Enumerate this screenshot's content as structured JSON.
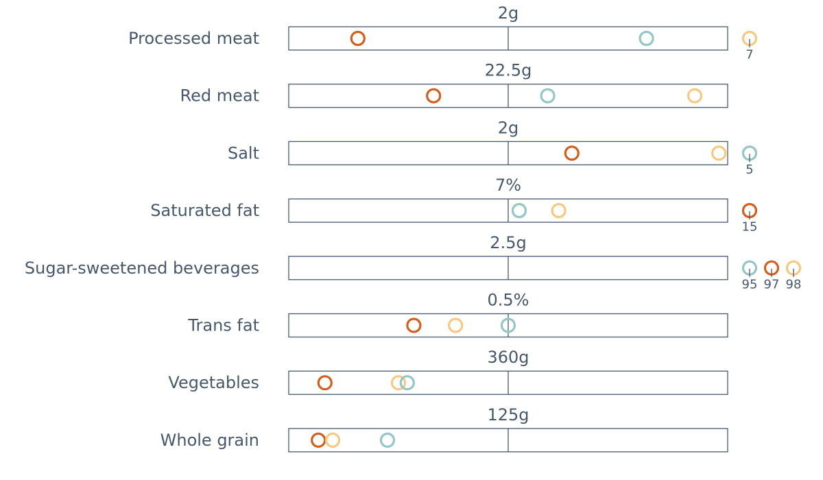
{
  "chart_data": {
    "type": "scatter",
    "colors": {
      "dark-orange": "#d35f1a",
      "light-orange": "#f7c97e",
      "teal": "#93c6c4"
    },
    "rows": [
      {
        "category": "Processed meat",
        "reference": "2g",
        "points": [
          {
            "color": "dark-orange",
            "rel": 0.315
          },
          {
            "color": "teal",
            "rel": 1.63
          },
          {
            "color": "light-orange",
            "outlier": "7"
          }
        ]
      },
      {
        "category": "Red meat",
        "reference": "22.5g",
        "points": [
          {
            "color": "dark-orange",
            "rel": 0.66
          },
          {
            "color": "teal",
            "rel": 1.18
          },
          {
            "color": "light-orange",
            "rel": 1.85
          }
        ]
      },
      {
        "category": "Salt",
        "reference": "2g",
        "points": [
          {
            "color": "dark-orange",
            "rel": 1.29
          },
          {
            "color": "light-orange",
            "rel": 1.96
          },
          {
            "color": "teal",
            "outlier": "5"
          }
        ]
      },
      {
        "category": "Saturated fat",
        "reference": "7%",
        "points": [
          {
            "color": "teal",
            "rel": 1.05
          },
          {
            "color": "light-orange",
            "rel": 1.23
          },
          {
            "color": "dark-orange",
            "outlier": "15"
          }
        ]
      },
      {
        "category": "Sugar-sweetened beverages",
        "reference": "2.5g",
        "points": [
          {
            "color": "teal",
            "outlier": "95"
          },
          {
            "color": "dark-orange",
            "outlier": "97"
          },
          {
            "color": "light-orange",
            "outlier": "98"
          }
        ]
      },
      {
        "category": "Trans fat",
        "reference": "0.5%",
        "points": [
          {
            "color": "dark-orange",
            "rel": 0.57
          },
          {
            "color": "light-orange",
            "rel": 0.76
          },
          {
            "color": "teal",
            "rel": 1.0
          }
        ]
      },
      {
        "category": "Vegetables",
        "reference": "360g",
        "points": [
          {
            "color": "dark-orange",
            "rel": 0.165
          },
          {
            "color": "light-orange",
            "rel": 0.5
          },
          {
            "color": "teal",
            "rel": 0.54
          }
        ]
      },
      {
        "category": "Whole grain",
        "reference": "125g",
        "points": [
          {
            "color": "dark-orange",
            "rel": 0.135
          },
          {
            "color": "light-orange",
            "rel": 0.2
          },
          {
            "color": "teal",
            "rel": 0.45
          }
        ]
      }
    ],
    "xlim": [
      0,
      2
    ],
    "grid": false,
    "legend": "none"
  }
}
